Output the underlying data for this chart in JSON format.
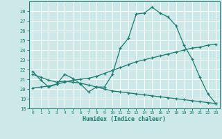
{
  "xlabel": "Humidex (Indice chaleur)",
  "bg_color": "#cce8e8",
  "line_color": "#1a7a6e",
  "grid_color": "#ffffff",
  "xlim": [
    -0.5,
    23.5
  ],
  "ylim": [
    18,
    29
  ],
  "yticks": [
    18,
    19,
    20,
    21,
    22,
    23,
    24,
    25,
    26,
    27,
    28
  ],
  "xticks": [
    0,
    1,
    2,
    3,
    4,
    5,
    6,
    7,
    8,
    9,
    10,
    11,
    12,
    13,
    14,
    15,
    16,
    17,
    18,
    19,
    20,
    21,
    22,
    23
  ],
  "line1_x": [
    0,
    1,
    2,
    3,
    4,
    5,
    6,
    7,
    8,
    9,
    10,
    11,
    12,
    13,
    14,
    15,
    16,
    17,
    18,
    19,
    20,
    21,
    22,
    23
  ],
  "line1_y": [
    21.8,
    20.9,
    20.2,
    20.5,
    21.5,
    21.1,
    20.5,
    19.7,
    20.2,
    20.2,
    21.5,
    24.2,
    25.2,
    27.7,
    27.8,
    28.4,
    27.8,
    27.4,
    26.5,
    24.5,
    23.1,
    21.2,
    19.5,
    18.5
  ],
  "line2_x": [
    0,
    1,
    2,
    3,
    4,
    5,
    6,
    7,
    8,
    9,
    10,
    11,
    12,
    13,
    14,
    15,
    16,
    17,
    18,
    19,
    20,
    21,
    22,
    23
  ],
  "line2_y": [
    20.1,
    20.2,
    20.3,
    20.5,
    20.7,
    20.9,
    21.0,
    21.1,
    21.3,
    21.6,
    21.9,
    22.2,
    22.5,
    22.8,
    23.0,
    23.2,
    23.4,
    23.6,
    23.8,
    24.0,
    24.2,
    24.3,
    24.5,
    24.6
  ],
  "line3_x": [
    0,
    1,
    2,
    3,
    4,
    5,
    6,
    7,
    8,
    9,
    10,
    11,
    12,
    13,
    14,
    15,
    16,
    17,
    18,
    19,
    20,
    21,
    22,
    23
  ],
  "line3_y": [
    21.5,
    21.2,
    20.9,
    20.7,
    20.8,
    20.7,
    20.6,
    20.4,
    20.2,
    20.0,
    19.8,
    19.7,
    19.6,
    19.5,
    19.4,
    19.3,
    19.2,
    19.1,
    19.0,
    18.9,
    18.8,
    18.7,
    18.6,
    18.5
  ]
}
